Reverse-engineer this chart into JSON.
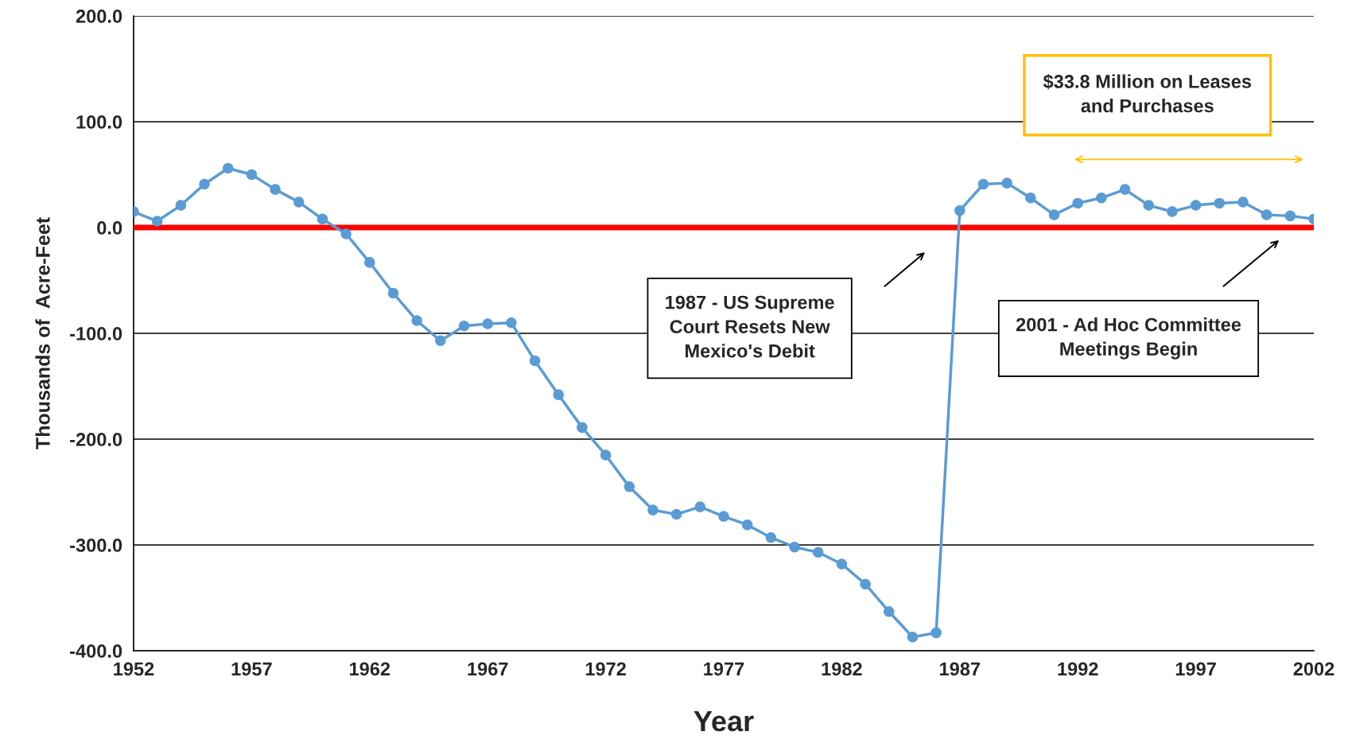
{
  "chart_data": {
    "type": "line",
    "xlabel": "Year",
    "ylabel": "Thousands of  Acre-Feet",
    "x": [
      1952,
      1953,
      1954,
      1955,
      1956,
      1957,
      1958,
      1959,
      1960,
      1961,
      1962,
      1963,
      1964,
      1965,
      1966,
      1967,
      1968,
      1969,
      1970,
      1971,
      1972,
      1973,
      1974,
      1975,
      1976,
      1977,
      1978,
      1979,
      1980,
      1981,
      1982,
      1983,
      1984,
      1985,
      1986,
      1987,
      1988,
      1989,
      1990,
      1991,
      1992,
      1993,
      1994,
      1995,
      1996,
      1997,
      1998,
      1999,
      2000,
      2001,
      2002
    ],
    "series": [
      {
        "color": "#5b9bd5",
        "values": [
          15,
          6,
          21,
          41,
          56,
          50,
          36,
          24,
          8,
          -6,
          -33,
          -62,
          -88,
          -107,
          -93,
          -91,
          -90,
          -126,
          -158,
          -189,
          -215,
          -245,
          -267,
          -271,
          -264,
          -273,
          -281,
          -293,
          -302,
          -307,
          -318,
          -337,
          -363,
          -387,
          -383,
          16,
          41,
          42,
          28,
          12,
          23,
          28,
          36,
          21,
          15,
          21,
          23,
          24,
          12,
          11,
          8
        ]
      }
    ],
    "marker": "circle",
    "xlim": [
      1952,
      2002
    ],
    "xticks": [
      1952,
      1957,
      1962,
      1967,
      1972,
      1977,
      1982,
      1987,
      1992,
      1997,
      2002
    ],
    "ylim": [
      -400,
      200
    ],
    "yticks": [
      {
        "value": -400,
        "label": "-400.0"
      },
      {
        "value": -300,
        "label": "-300.0"
      },
      {
        "value": -200,
        "label": "-200.0"
      },
      {
        "value": -100,
        "label": "-100.0"
      },
      {
        "value": 0,
        "label": "0.0"
      },
      {
        "value": 100,
        "label": "100.0"
      },
      {
        "value": 200,
        "label": "200.0"
      }
    ],
    "grid": "y",
    "ref_lines": [
      {
        "axis": "y",
        "value": 0,
        "color": "#ff0000"
      }
    ],
    "annotations": [
      "1987 - US Supreme\nCourt Resets New\nMexico's Debit",
      "2001 - Ad Hoc Committee\nMeetings Begin",
      "$33.8 Million on Leases\nand Purchases"
    ]
  }
}
